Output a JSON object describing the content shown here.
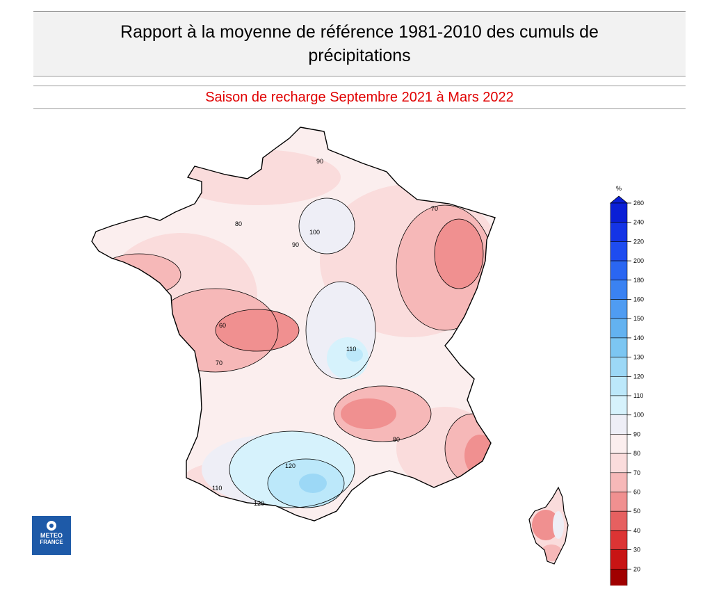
{
  "header": {
    "title": "Rapport à la moyenne de référence 1981-2010 des cumuls de précipitations",
    "subtitle": "Saison de recharge  Septembre 2021 à Mars 2022"
  },
  "logo": {
    "line1": "METEO",
    "line2": "FRANCE"
  },
  "legend": {
    "unit": "%",
    "levels": [
      {
        "value": "260",
        "color": "#0a1fd6"
      },
      {
        "value": "240",
        "color": "#1434e6"
      },
      {
        "value": "220",
        "color": "#1e4cf0"
      },
      {
        "value": "200",
        "color": "#2a66f2"
      },
      {
        "value": "180",
        "color": "#3a82f2"
      },
      {
        "value": "160",
        "color": "#4f9cf2"
      },
      {
        "value": "150",
        "color": "#63b2f0"
      },
      {
        "value": "140",
        "color": "#7cc6f2"
      },
      {
        "value": "130",
        "color": "#9cd8f6"
      },
      {
        "value": "120",
        "color": "#bce8fa"
      },
      {
        "value": "110",
        "color": "#d6f2fc"
      },
      {
        "value": "100",
        "color": "#eeeef6"
      },
      {
        "value": "90",
        "color": "#fbeeee"
      },
      {
        "value": "80",
        "color": "#fadcdc"
      },
      {
        "value": "70",
        "color": "#f6b8b8"
      },
      {
        "value": "60",
        "color": "#f09090"
      },
      {
        "value": "50",
        "color": "#e66060"
      },
      {
        "value": "40",
        "color": "#dc3434"
      },
      {
        "value": "30",
        "color": "#c81414"
      },
      {
        "value": "20",
        "color": "#a00000"
      }
    ]
  },
  "map_labels": [
    "90",
    "80",
    "100",
    "70",
    "110",
    "120",
    "60"
  ]
}
